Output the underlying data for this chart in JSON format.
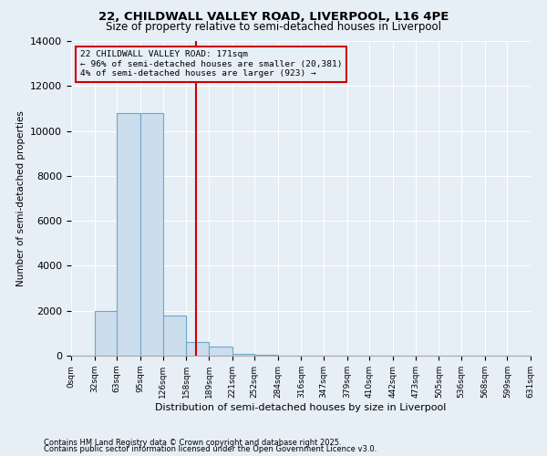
{
  "title": "22, CHILDWALL VALLEY ROAD, LIVERPOOL, L16 4PE",
  "subtitle": "Size of property relative to semi-detached houses in Liverpool",
  "xlabel": "Distribution of semi-detached houses by size in Liverpool",
  "ylabel": "Number of semi-detached properties",
  "footnote1": "Contains HM Land Registry data © Crown copyright and database right 2025.",
  "footnote2": "Contains public sector information licensed under the Open Government Licence v3.0.",
  "annotation_line1": "22 CHILDWALL VALLEY ROAD: 171sqm",
  "annotation_line2": "← 96% of semi-detached houses are smaller (20,381)",
  "annotation_line3": "4% of semi-detached houses are larger (923) →",
  "bar_edges": [
    0,
    32,
    63,
    95,
    126,
    158,
    189,
    221,
    252,
    284,
    316,
    347,
    379,
    410,
    442,
    473,
    505,
    536,
    568,
    599,
    631
  ],
  "bar_heights": [
    0,
    2000,
    10800,
    10800,
    1800,
    600,
    400,
    100,
    50,
    20,
    10,
    5,
    0,
    0,
    0,
    0,
    0,
    0,
    0,
    0
  ],
  "bar_color": "#ccdded",
  "bar_edge_color": "#6aaac8",
  "vline_x": 171,
  "vline_color": "#cc0000",
  "annotation_box_color": "#cc0000",
  "background_color": "#e6eef6",
  "ylim": [
    0,
    14000
  ],
  "yticks": [
    0,
    2000,
    4000,
    6000,
    8000,
    10000,
    12000,
    14000
  ],
  "tick_labels": [
    "0sqm",
    "32sqm",
    "63sqm",
    "95sqm",
    "126sqm",
    "158sqm",
    "189sqm",
    "221sqm",
    "252sqm",
    "284sqm",
    "316sqm",
    "347sqm",
    "379sqm",
    "410sqm",
    "442sqm",
    "473sqm",
    "505sqm",
    "536sqm",
    "568sqm",
    "599sqm",
    "631sqm"
  ]
}
